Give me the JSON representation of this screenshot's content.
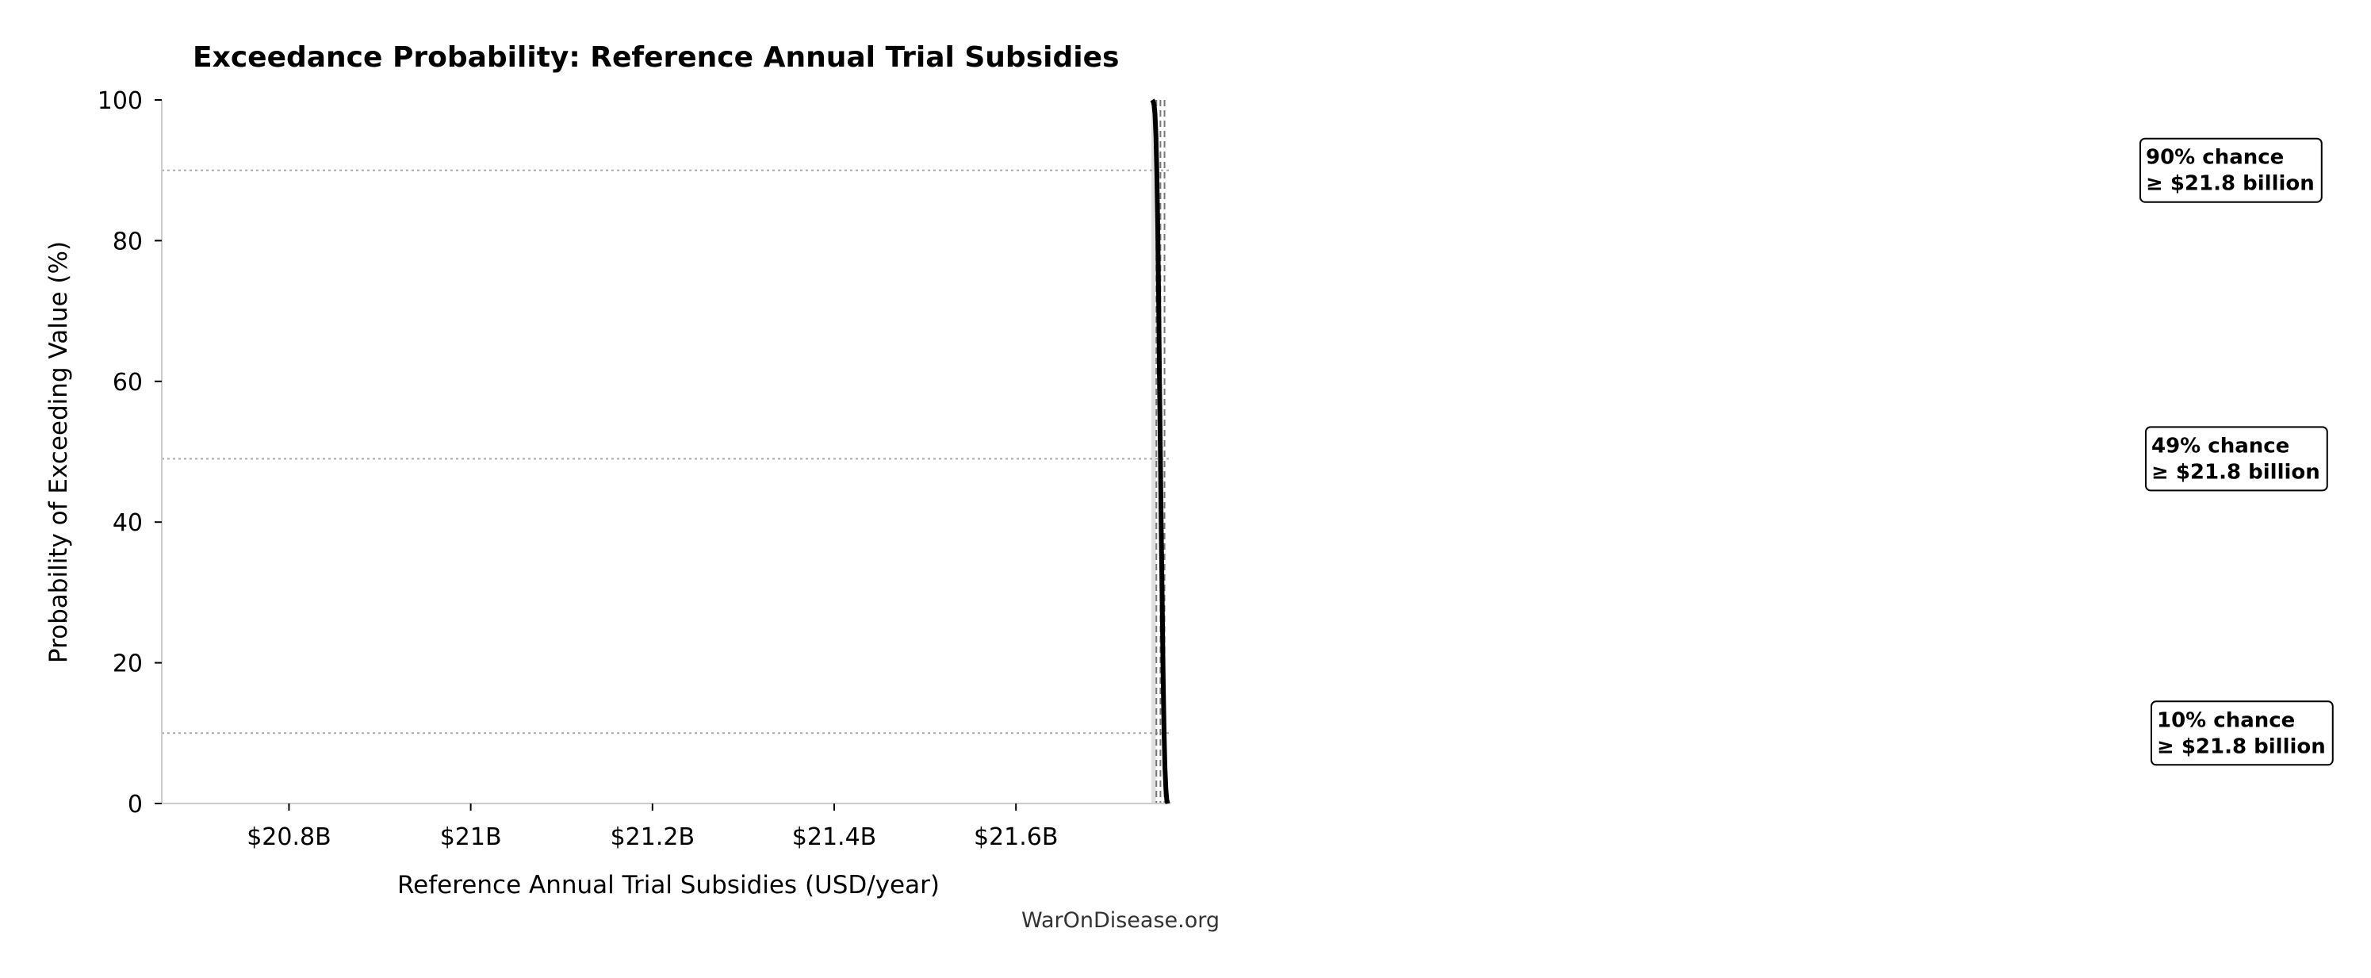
{
  "chart_data": {
    "type": "line",
    "title": "Exceedance Probability: Reference Annual Trial Subsidies",
    "xlabel": "Reference Annual Trial Subsidies (USD/year)",
    "ylabel": "Probability of Exceeding Value (%)",
    "xlim": [
      20.66,
      21.77
    ],
    "ylim": [
      0,
      100
    ],
    "x_unit": "billion USD/year",
    "x_ticks": [
      {
        "value": 20.8,
        "label": "$20.8B"
      },
      {
        "value": 21.0,
        "label": "$21B"
      },
      {
        "value": 21.2,
        "label": "$21.2B"
      },
      {
        "value": 21.4,
        "label": "$21.4B"
      },
      {
        "value": 21.6,
        "label": "$21.6B"
      }
    ],
    "y_ticks": [
      {
        "value": 0,
        "label": "0"
      },
      {
        "value": 20,
        "label": "20"
      },
      {
        "value": 40,
        "label": "40"
      },
      {
        "value": 60,
        "label": "60"
      },
      {
        "value": 80,
        "label": "80"
      },
      {
        "value": 100,
        "label": "100"
      }
    ],
    "series": [
      {
        "x": [
          21.75,
          21.751,
          21.752,
          21.753,
          21.754,
          21.755,
          21.756,
          21.757,
          21.758,
          21.759,
          21.76,
          21.761,
          21.762,
          21.763,
          21.764,
          21.765,
          21.766,
          21.767
        ],
        "y": [
          100,
          99.8,
          99.3,
          98,
          95,
          90,
          82,
          72,
          60,
          49,
          38,
          28,
          18,
          10,
          5,
          2,
          0.5,
          0
        ]
      }
    ],
    "percentile_lines": [
      {
        "value": 90
      },
      {
        "value": 49
      },
      {
        "value": 10
      }
    ],
    "vertical_lines": [
      21.7545,
      21.759,
      21.7635
    ],
    "shaded_band": [
      21.749,
      21.754
    ],
    "annotations": [
      {
        "line1": "90% chance",
        "line2": "≥ $21.8 billion",
        "y": 90
      },
      {
        "line1": "49% chance",
        "line2": "≥ $21.8 billion",
        "y": 49
      },
      {
        "line1": "10% chance",
        "line2": "≥ $21.8 billion",
        "y": 10
      }
    ],
    "grid": false,
    "colors": {
      "curve": "#000000",
      "reference": "#aaaaaa",
      "vline": "#777777",
      "band": "#d3d3d3",
      "axis": "#cccccc"
    }
  },
  "watermark": "WarOnDisease.org"
}
